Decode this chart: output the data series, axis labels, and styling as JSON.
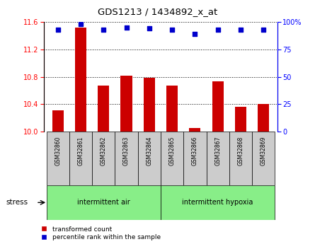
{
  "title": "GDS1213 / 1434892_x_at",
  "samples": [
    "GSM32860",
    "GSM32861",
    "GSM32862",
    "GSM32863",
    "GSM32864",
    "GSM32865",
    "GSM32866",
    "GSM32867",
    "GSM32868",
    "GSM32869"
  ],
  "bar_values": [
    10.31,
    11.52,
    10.67,
    10.82,
    10.79,
    10.67,
    10.05,
    10.73,
    10.36,
    10.41
  ],
  "percentile_values": [
    93,
    98,
    93,
    95,
    94,
    93,
    89,
    93,
    93,
    93
  ],
  "ylim_left": [
    10.0,
    11.6
  ],
  "ylim_right": [
    0,
    100
  ],
  "yticks_left": [
    10.0,
    10.4,
    10.8,
    11.2,
    11.6
  ],
  "yticks_right": [
    0,
    25,
    50,
    75,
    100
  ],
  "ytick_labels_right": [
    "0",
    "25",
    "50",
    "75",
    "100%"
  ],
  "bar_color": "#cc0000",
  "dot_color": "#0000cc",
  "group1_label": "intermittent air",
  "group2_label": "intermittent hypoxia",
  "group1_indices": [
    0,
    1,
    2,
    3,
    4
  ],
  "group2_indices": [
    5,
    6,
    7,
    8,
    9
  ],
  "group_bg_color": "#88ee88",
  "sample_bg_color": "#cccccc",
  "stress_label": "stress",
  "legend_bar_label": "transformed count",
  "legend_dot_label": "percentile rank within the sample",
  "grid_color": "#000000",
  "bar_width": 0.5
}
